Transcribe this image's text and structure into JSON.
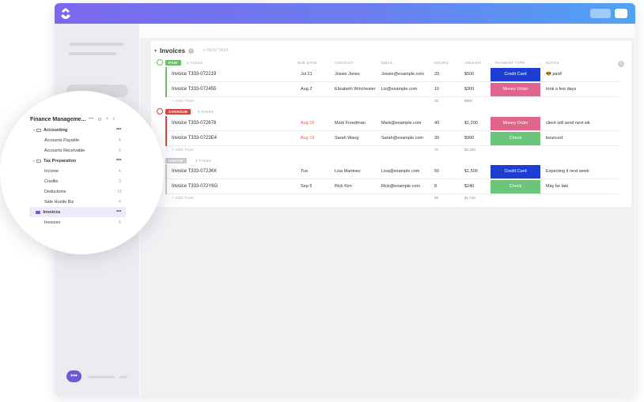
{
  "window": {
    "topbar_gradient": [
      "#7b68ee",
      "#4fa3f5"
    ]
  },
  "list": {
    "title": "Invoices",
    "new_task_label": "+ NEW TASK",
    "columns": [
      "DUE DATE",
      "CONTACT",
      "EMAIL",
      "HOURS",
      "AMOUNT",
      "PAYMENT TYPE",
      "NOTES"
    ],
    "add_task_label": "+ ADD TASK",
    "groups": [
      {
        "status": "PAID",
        "color": "#6cc063",
        "count": "2 TASKS",
        "rows": [
          {
            "name": "Invoice T333-072219",
            "due": "Jul 21",
            "contact": "Jossie Jones",
            "email": "Jossie@example.com",
            "hours": "20",
            "amount": "$500",
            "payment": "Credit Card",
            "payment_color": "#1c3fd1",
            "notes": "😎 paid!"
          },
          {
            "name": "Invoice T333-072455",
            "due": "Aug 2",
            "contact": "Elizabeth Winchester",
            "email": "Liz@example.com",
            "hours": "10",
            "amount": "$300",
            "payment": "Money Order",
            "payment_color": "#e0658a",
            "notes": "took a few days"
          }
        ],
        "sum_hours": "30",
        "sum_amount": "$800"
      },
      {
        "status": "OVERDUE",
        "color": "#d9453c",
        "count": "2 TASKS",
        "rows": [
          {
            "name": "Invoice T333-072678",
            "due": "Aug 15",
            "due_overdue": true,
            "contact": "Mark Freedman",
            "email": "Mark@example.com",
            "hours": "40",
            "amount": "$1,200",
            "payment": "Money Order",
            "payment_color": "#e0658a",
            "notes": "client will send next wk"
          },
          {
            "name": "Invoice T333-0723E4",
            "due": "Aug 19",
            "due_overdue": true,
            "contact": "Sarah Wang",
            "email": "Sarah@example.com",
            "hours": "30",
            "amount": "$900",
            "payment": "Check",
            "payment_color": "#6cc37a",
            "notes": "bounced"
          }
        ],
        "sum_hours": "70",
        "sum_amount": "$2,100"
      },
      {
        "status": "UNPAID",
        "color": "#c8c8ce",
        "count": "2 TASKS",
        "rows": [
          {
            "name": "Invoice T333-072JKK",
            "due": "Tue",
            "contact": "Lisa Martinez",
            "email": "Lisa@example.com",
            "hours": "50",
            "amount": "$1,500",
            "payment": "Credit Card",
            "payment_color": "#1c3fd1",
            "notes": "Expecting it next week"
          },
          {
            "name": "Invoice T333-072Y6G",
            "due": "Sep 5",
            "contact": "Rick Kim",
            "email": "Rick@example.com",
            "hours": "8",
            "amount": "$240",
            "payment": "Check",
            "payment_color": "#6cc37a",
            "notes": "May be late"
          }
        ],
        "sum_hours": "58",
        "sum_amount": "$1,740"
      }
    ]
  },
  "sidebar": {
    "workspace_title": "Finance Manageme...",
    "items": [
      {
        "label": "Accounting",
        "type": "folder",
        "bold": true
      },
      {
        "label": "Accounts Payable",
        "count": "4"
      },
      {
        "label": "Accounts Receivable",
        "count": "5"
      },
      {
        "label": "Tax Preparation",
        "type": "folder",
        "bold": true
      },
      {
        "label": "Income",
        "count": "4"
      },
      {
        "label": "Credits",
        "count": "3"
      },
      {
        "label": "Deductions",
        "count": "10"
      },
      {
        "label": "Side Hustle Biz",
        "count": "4"
      },
      {
        "label": "Invoices",
        "type": "folder",
        "bold": true,
        "selected": true
      },
      {
        "label": "Invoices",
        "count": "4"
      }
    ]
  }
}
